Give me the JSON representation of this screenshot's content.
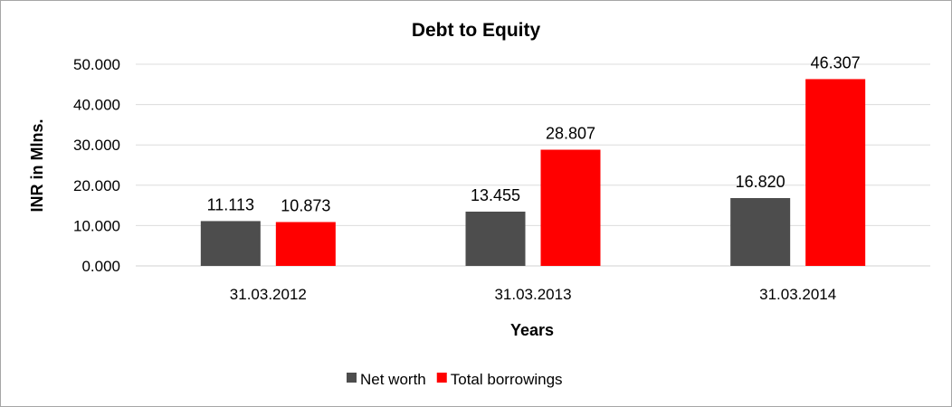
{
  "chart_data": {
    "type": "bar",
    "title": "Debt to Equity",
    "xlabel": "Years",
    "ylabel": "INR in Mlns.",
    "categories": [
      "31.03.2012",
      "31.03.2013",
      "31.03.2014"
    ],
    "ylim": [
      0,
      50
    ],
    "yticks": [
      "0.000",
      "10.000",
      "20.000",
      "30.000",
      "40.000",
      "50.000"
    ],
    "grid": true,
    "legend_position": "bottom",
    "series": [
      {
        "name": "Net worth",
        "color": "#4d4d4d",
        "values": [
          11.113,
          13.455,
          16.82
        ],
        "labels": [
          "11.113",
          "13.455",
          "16.820"
        ]
      },
      {
        "name": "Total borrowings",
        "color": "#ff0000",
        "values": [
          10.873,
          28.807,
          46.307
        ],
        "labels": [
          "10.873",
          "28.807",
          "46.307"
        ]
      }
    ]
  }
}
